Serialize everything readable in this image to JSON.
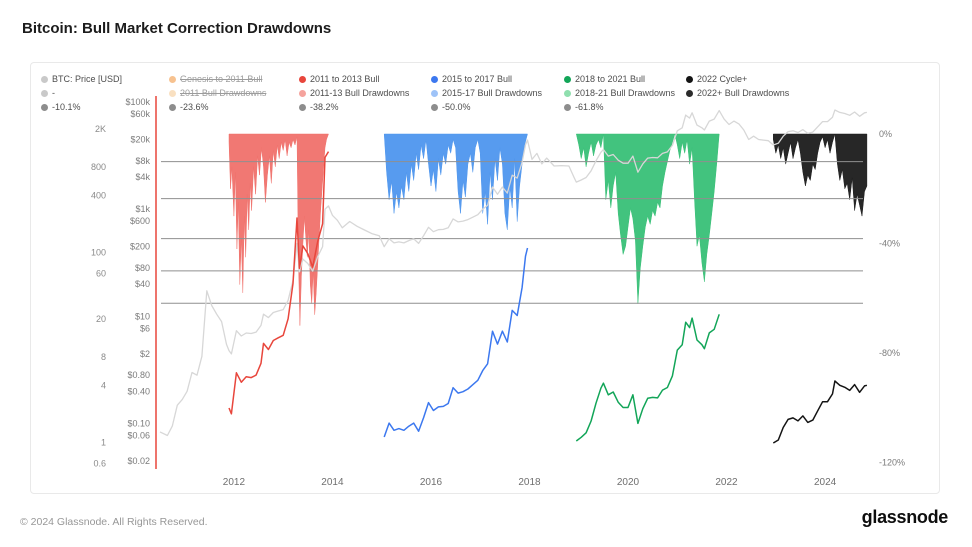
{
  "header": {
    "title": "Bitcoin: Bull Market Correction Drawdowns"
  },
  "footer": {
    "copyright": "© 2024 Glassnode. All Rights Reserved.",
    "brand": "glassnode"
  },
  "legend": {
    "rows": [
      {
        "items": [
          {
            "label": "BTC: Price [USD]",
            "color": "#c9c9c9",
            "disabled": false
          },
          {
            "label": "Genesis to 2011 Bull",
            "color": "#f2a154",
            "disabled": true
          },
          {
            "label": "2011 to 2013 Bull",
            "color": "#e8463c",
            "disabled": false
          },
          {
            "label": "2015 to 2017 Bull",
            "color": "#3c78ef",
            "disabled": false
          },
          {
            "label": "2018 to 2021 Bull",
            "color": "#12a558",
            "disabled": false
          },
          {
            "label": "2022 Cycle+",
            "color": "#141414",
            "disabled": false
          }
        ]
      },
      {
        "items": [
          {
            "label": "-",
            "color": "#c9c9c9",
            "disabled": false
          },
          {
            "label": "2011 Bull Drawdowns",
            "color": "#f6cf9f",
            "disabled": true
          },
          {
            "label": "2011-13 Bull Drawdowns",
            "color": "#f5a39d",
            "disabled": false
          },
          {
            "label": "2015-17 Bull Drawdowns",
            "color": "#9ec3f8",
            "disabled": false
          },
          {
            "label": "2018-21 Bull Drawdowns",
            "color": "#8fdfae",
            "disabled": false
          },
          {
            "label": "2022+ Bull Drawdowns",
            "color": "#2b2b2b",
            "disabled": false
          }
        ]
      },
      {
        "items": [
          {
            "label": "-10.1%",
            "color": "#8d8d8d",
            "disabled": false
          },
          {
            "label": "-23.6%",
            "color": "#8d8d8d",
            "disabled": false
          },
          {
            "label": "-38.2%",
            "color": "#8d8d8d",
            "disabled": false
          },
          {
            "label": "-50.0%",
            "color": "#8d8d8d",
            "disabled": false
          },
          {
            "label": "-61.8%",
            "color": "#8d8d8d",
            "disabled": false
          }
        ]
      }
    ]
  },
  "chart_data": {
    "type": "line",
    "title": "Bitcoin: Bull Market Correction Drawdowns",
    "x_axis": {
      "ticks": [
        2012,
        2014,
        2016,
        2018,
        2020,
        2022,
        2024
      ],
      "range": [
        2010.52,
        2024.77
      ]
    },
    "price_axis_outer": {
      "labels": [
        "2K",
        "800",
        "400",
        "100",
        "60",
        "20",
        "8",
        "4",
        "1",
        "0.6"
      ],
      "values": [
        2000,
        800,
        400,
        100,
        60,
        20,
        8,
        4,
        1,
        0.6
      ]
    },
    "price_axis_usd": {
      "labels": [
        "$100k",
        "$60k",
        "$20k",
        "$8k",
        "$4k",
        "$1k",
        "$600",
        "$200",
        "$80",
        "$40",
        "$10",
        "$6",
        "$2",
        "$0.80",
        "$0.40",
        "$0.10",
        "$0.06",
        "$0.02"
      ],
      "values": [
        100000,
        60000,
        20000,
        8000,
        4000,
        1000,
        600,
        200,
        80,
        40,
        10,
        6,
        2,
        0.8,
        0.4,
        0.1,
        0.06,
        0.02
      ]
    },
    "drawdown_axis": {
      "labels": [
        "0%",
        "-40%",
        "-80%",
        "-120%"
      ],
      "values": [
        0,
        -40,
        -80,
        -120
      ]
    },
    "drawdown_levels": [
      -10.1,
      -23.6,
      -38.2,
      -50.0,
      -61.8
    ],
    "btc_price": {
      "name": "BTC: Price [USD]",
      "color": "#d7d7d7",
      "x": [
        2010.5,
        2010.65,
        2010.75,
        2010.85,
        2010.95,
        2011.05,
        2011.15,
        2011.25,
        2011.35,
        2011.45,
        2011.55,
        2011.65,
        2011.75,
        2011.85,
        2011.9,
        2011.95,
        2012.05,
        2012.15,
        2012.25,
        2012.35,
        2012.45,
        2012.55,
        2012.6,
        2012.7,
        2012.8,
        2012.9,
        2013.0,
        2013.1,
        2013.2,
        2013.28,
        2013.33,
        2013.4,
        2013.5,
        2013.6,
        2013.7,
        2013.8,
        2013.85,
        2013.92,
        2014.0,
        2014.1,
        2014.2,
        2014.35,
        2014.5,
        2014.65,
        2014.8,
        2014.95,
        2015.05,
        2015.15,
        2015.25,
        2015.35,
        2015.45,
        2015.55,
        2015.65,
        2015.75,
        2015.85,
        2015.95,
        2016.05,
        2016.15,
        2016.25,
        2016.35,
        2016.45,
        2016.55,
        2016.65,
        2016.75,
        2016.85,
        2016.95,
        2017.05,
        2017.15,
        2017.25,
        2017.35,
        2017.45,
        2017.55,
        2017.65,
        2017.75,
        2017.85,
        2017.92,
        2017.96,
        2018.05,
        2018.15,
        2018.25,
        2018.35,
        2018.5,
        2018.65,
        2018.8,
        2018.9,
        2018.95,
        2019.05,
        2019.15,
        2019.25,
        2019.35,
        2019.45,
        2019.5,
        2019.6,
        2019.7,
        2019.8,
        2019.9,
        2020.0,
        2020.1,
        2020.2,
        2020.3,
        2020.4,
        2020.5,
        2020.6,
        2020.7,
        2020.8,
        2020.9,
        2021.0,
        2021.1,
        2021.17,
        2021.25,
        2021.3,
        2021.4,
        2021.5,
        2021.55,
        2021.65,
        2021.75,
        2021.85,
        2021.95,
        2022.05,
        2022.15,
        2022.25,
        2022.35,
        2022.45,
        2022.55,
        2022.65,
        2022.75,
        2022.85,
        2022.95,
        2023.05,
        2023.15,
        2023.25,
        2023.35,
        2023.45,
        2023.55,
        2023.65,
        2023.75,
        2023.85,
        2023.95,
        2024.05,
        2024.15,
        2024.2,
        2024.3,
        2024.4,
        2024.5,
        2024.6,
        2024.7,
        2024.8,
        2024.85
      ],
      "price": [
        0.07,
        0.06,
        0.09,
        0.22,
        0.28,
        0.4,
        0.9,
        0.8,
        1.8,
        30,
        16,
        11,
        8,
        3,
        2.3,
        2.0,
        5.4,
        4.3,
        4.9,
        4.8,
        5.1,
        6.8,
        11,
        9.5,
        11.8,
        12.6,
        13.4,
        20,
        47,
        230,
        68,
        117,
        97,
        70,
        130,
        200,
        1000,
        1150,
        770,
        620,
        450,
        590,
        480,
        410,
        350,
        320,
        200,
        280,
        235,
        245,
        235,
        260,
        280,
        230,
        320,
        460,
        380,
        415,
        420,
        450,
        660,
        580,
        600,
        640,
        710,
        790,
        1000,
        1180,
        2600,
        1900,
        2600,
        2000,
        4300,
        3800,
        7500,
        16000,
        19500,
        8500,
        11000,
        7000,
        9000,
        6400,
        6500,
        6400,
        4000,
        3200,
        3500,
        3900,
        5200,
        8000,
        11500,
        13000,
        9800,
        10500,
        8200,
        7200,
        7200,
        9800,
        4900,
        7000,
        9000,
        9200,
        9100,
        11000,
        11700,
        15500,
        29000,
        33000,
        57000,
        50000,
        63000,
        37000,
        33000,
        30000,
        44000,
        48000,
        69000,
        48000,
        38000,
        44000,
        39000,
        30000,
        20000,
        23000,
        20000,
        19500,
        19000,
        15800,
        17000,
        23000,
        28000,
        29000,
        27000,
        30500,
        26000,
        27500,
        34500,
        43000,
        43000,
        52000,
        71000,
        64000,
        61000,
        56500,
        65000,
        54000,
        63000,
        64000
      ]
    },
    "bulls": [
      {
        "name": "2011 to 2013 Bull",
        "color": "#e8463c",
        "area_color": "#f0716b",
        "start": 2011.9,
        "end": 2013.92,
        "drawdowns": {
          "x": [
            2011.9,
            2011.93,
            2011.96,
            2012.0,
            2012.03,
            2012.06,
            2012.09,
            2012.12,
            2012.15,
            2012.18,
            2012.21,
            2012.24,
            2012.27,
            2012.3,
            2012.33,
            2012.36,
            2012.4,
            2012.44,
            2012.48,
            2012.52,
            2012.56,
            2012.6,
            2012.64,
            2012.68,
            2012.72,
            2012.76,
            2012.8,
            2012.84,
            2012.88,
            2012.92,
            2012.96,
            2013.0,
            2013.04,
            2013.08,
            2013.12,
            2013.16,
            2013.2,
            2013.24,
            2013.28,
            2013.31,
            2013.34,
            2013.37,
            2013.4,
            2013.43,
            2013.46,
            2013.49,
            2013.52,
            2013.55,
            2013.58,
            2013.61,
            2013.64,
            2013.67,
            2013.7,
            2013.73,
            2013.76,
            2013.79,
            2013.82,
            2013.85,
            2013.88,
            2013.92
          ],
          "pct": [
            -3,
            -20,
            -12,
            -30,
            -14,
            -42,
            -25,
            -55,
            -38,
            -58,
            -30,
            -45,
            -22,
            -35,
            -18,
            -28,
            -12,
            -22,
            -8,
            -15,
            -5,
            -12,
            -25,
            -15,
            -8,
            -18,
            -6,
            -12,
            -4,
            -9,
            -3,
            -6,
            -2,
            -8,
            -3,
            -5,
            -2,
            -4,
            -1,
            -45,
            -70,
            -52,
            -40,
            -30,
            -38,
            -45,
            -35,
            -55,
            -62,
            -50,
            -66,
            -58,
            -48,
            -38,
            -28,
            -20,
            -12,
            -5,
            -2,
            0
          ]
        }
      },
      {
        "name": "2015 to 2017 Bull",
        "color": "#3c78ef",
        "area_color": "#4e96ee",
        "start": 2015.05,
        "end": 2017.96,
        "drawdowns": {
          "x": [
            2015.05,
            2015.1,
            2015.15,
            2015.2,
            2015.25,
            2015.3,
            2015.35,
            2015.4,
            2015.45,
            2015.5,
            2015.55,
            2015.6,
            2015.65,
            2015.7,
            2015.75,
            2015.8,
            2015.85,
            2015.9,
            2015.95,
            2016.0,
            2016.05,
            2016.1,
            2016.15,
            2016.2,
            2016.25,
            2016.3,
            2016.35,
            2016.4,
            2016.45,
            2016.5,
            2016.55,
            2016.6,
            2016.65,
            2016.7,
            2016.75,
            2016.8,
            2016.85,
            2016.9,
            2016.95,
            2017.0,
            2017.05,
            2017.1,
            2017.15,
            2017.2,
            2017.25,
            2017.3,
            2017.35,
            2017.4,
            2017.45,
            2017.5,
            2017.55,
            2017.6,
            2017.65,
            2017.7,
            2017.75,
            2017.8,
            2017.85,
            2017.9,
            2017.96
          ],
          "pct": [
            0,
            -14,
            -24,
            -17,
            -29,
            -21,
            -27,
            -19,
            -24,
            -14,
            -21,
            -11,
            -17,
            -7,
            -13,
            -4,
            -9,
            -2,
            -11,
            -19,
            -13,
            -21,
            -9,
            -15,
            -7,
            -11,
            -4,
            -7,
            -2,
            -5,
            -21,
            -29,
            -17,
            -23,
            -11,
            -7,
            -14,
            -5,
            -2,
            -7,
            -29,
            -21,
            -33,
            -14,
            -24,
            -9,
            -17,
            -5,
            -11,
            -29,
            -35,
            -19,
            -27,
            -9,
            -32,
            -19,
            -11,
            -4,
            0
          ]
        }
      },
      {
        "name": "2018 to 2021 Bull",
        "color": "#12a558",
        "area_color": "#38c077",
        "start": 2018.95,
        "end": 2021.85,
        "drawdowns": {
          "x": [
            2018.95,
            2019.0,
            2019.05,
            2019.1,
            2019.15,
            2019.2,
            2019.25,
            2019.3,
            2019.35,
            2019.4,
            2019.45,
            2019.5,
            2019.55,
            2019.6,
            2019.65,
            2019.7,
            2019.75,
            2019.8,
            2019.85,
            2019.9,
            2019.95,
            2020.0,
            2020.05,
            2020.1,
            2020.15,
            2020.2,
            2020.25,
            2020.3,
            2020.35,
            2020.4,
            2020.45,
            2020.5,
            2020.55,
            2020.6,
            2020.65,
            2020.7,
            2020.75,
            2020.8,
            2020.85,
            2020.9,
            2020.95,
            2021.0,
            2021.05,
            2021.1,
            2021.15,
            2021.2,
            2021.25,
            2021.3,
            2021.35,
            2021.4,
            2021.45,
            2021.5,
            2021.55,
            2021.6,
            2021.65,
            2021.7,
            2021.75,
            2021.8,
            2021.85
          ],
          "pct": [
            0,
            -4,
            -9,
            -5,
            -12,
            -7,
            -3,
            -8,
            -4,
            -2,
            -5,
            0,
            -24,
            -17,
            -27,
            -19,
            -14,
            -29,
            -37,
            -44,
            -41,
            -34,
            -27,
            -31,
            -39,
            -62,
            -49,
            -41,
            -34,
            -30,
            -33,
            -28,
            -30,
            -25,
            -27,
            -19,
            -14,
            -10,
            -6,
            -3,
            0,
            -4,
            -9,
            -3,
            -7,
            -2,
            -11,
            -5,
            -24,
            -41,
            -37,
            -47,
            -54,
            -44,
            -37,
            -29,
            -21,
            -11,
            0
          ]
        }
      },
      {
        "name": "2022 Cycle+",
        "color": "#141414",
        "area_color": "#1b1b1b",
        "start": 2022.95,
        "end": 2024.85,
        "drawdowns": {
          "x": [
            2022.95,
            2023.0,
            2023.05,
            2023.1,
            2023.15,
            2023.2,
            2023.25,
            2023.3,
            2023.35,
            2023.4,
            2023.45,
            2023.5,
            2023.55,
            2023.6,
            2023.65,
            2023.7,
            2023.75,
            2023.8,
            2023.85,
            2023.9,
            2023.95,
            2024.0,
            2024.05,
            2024.1,
            2024.15,
            2024.2,
            2024.25,
            2024.3,
            2024.35,
            2024.4,
            2024.45,
            2024.5,
            2024.55,
            2024.6,
            2024.65,
            2024.7,
            2024.75,
            2024.8,
            2024.85
          ],
          "pct": [
            -2,
            -7,
            -4,
            -9,
            -5,
            -11,
            -7,
            -3,
            -9,
            -5,
            -2,
            -7,
            -14,
            -19,
            -15,
            -17,
            -11,
            -13,
            -7,
            -3,
            -1,
            -5,
            -2,
            -7,
            -3,
            0,
            -11,
            -17,
            -13,
            -20,
            -18,
            -24,
            -16,
            -28,
            -22,
            -26,
            -30,
            -21,
            -19
          ]
        }
      }
    ]
  }
}
